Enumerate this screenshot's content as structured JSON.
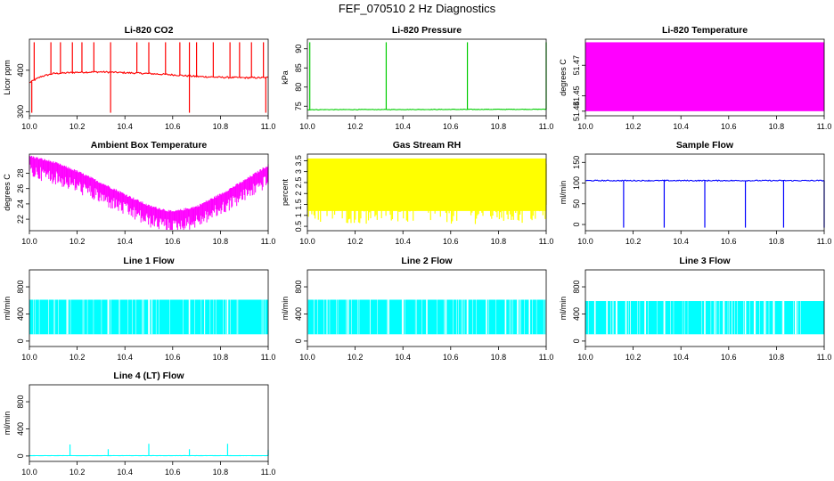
{
  "title": "FEF_070510  2 Hz Diagnostics",
  "colors": {
    "red": "#ff0000",
    "green": "#00cd00",
    "magenta": "#ff00ff",
    "yellow": "#ffff00",
    "blue": "#0000ff",
    "cyan": "#00ffff",
    "axis": "#000000"
  },
  "chart_data": [
    {
      "type": "line",
      "title": "Li-820 CO2",
      "ylabel": "Licor ppm",
      "color": "red",
      "xlim": [
        10.0,
        11.0
      ],
      "ylim": [
        290,
        475
      ],
      "xticks": [
        "10.0",
        "10.2",
        "10.4",
        "10.6",
        "10.8",
        "11.0"
      ],
      "yticks": [
        300,
        400
      ],
      "x": [
        10.0,
        10.05,
        10.1,
        10.2,
        10.3,
        10.4,
        10.5,
        10.6,
        10.7,
        10.8,
        10.9,
        11.0
      ],
      "y": [
        370,
        385,
        392,
        395,
        396,
        394,
        392,
        389,
        385,
        383,
        382,
        382
      ],
      "spikes_up": [
        10.02,
        10.09,
        10.13,
        10.18,
        10.22,
        10.27,
        10.34,
        10.45,
        10.5,
        10.57,
        10.63,
        10.67,
        10.7,
        10.77,
        10.84,
        10.88,
        10.93,
        10.98
      ],
      "spikes_down": [
        10.01,
        10.34,
        10.67,
        10.99
      ]
    },
    {
      "type": "line",
      "title": "Li-820 Pressure",
      "ylabel": "kPa",
      "color": "green",
      "xlim": [
        10.0,
        11.0
      ],
      "ylim": [
        72.5,
        92.5
      ],
      "xticks": [
        "10.0",
        "10.2",
        "10.4",
        "10.6",
        "10.8",
        "11.0"
      ],
      "yticks": [
        75,
        80,
        85,
        90
      ],
      "x": [
        10.0,
        11.0
      ],
      "y": [
        74.1,
        74.2
      ],
      "spikes_up": [
        10.01,
        10.33,
        10.67,
        11.0
      ]
    },
    {
      "type": "line",
      "title": "Li-820 Temperature",
      "ylabel": "degrees C",
      "color": "magenta",
      "xlim": [
        10.0,
        11.0
      ],
      "ylim": [
        51.437,
        51.487
      ],
      "xticks": [
        "10.0",
        "10.2",
        "10.4",
        "10.6",
        "10.8",
        "11.0"
      ],
      "yticks": [
        51.44,
        51.45,
        51.47
      ],
      "x": [
        10.0,
        11.0
      ],
      "y": [
        51.44,
        51.485
      ]
    },
    {
      "type": "line",
      "title": "Ambient Box Temperature",
      "ylabel": "degrees C",
      "color": "magenta",
      "xlim": [
        10.0,
        11.0
      ],
      "ylim": [
        20.5,
        30.5
      ],
      "xticks": [
        "10.0",
        "10.2",
        "10.4",
        "10.6",
        "10.8",
        "11.0"
      ],
      "yticks": [
        22,
        24,
        26,
        28
      ],
      "x": [
        10.0,
        10.1,
        10.2,
        10.3,
        10.4,
        10.5,
        10.6,
        10.7,
        10.8,
        10.9,
        11.0
      ],
      "y": [
        29.8,
        29.0,
        27.8,
        26.3,
        24.8,
        23.3,
        22.5,
        23.2,
        24.8,
        26.6,
        28.6
      ]
    },
    {
      "type": "line",
      "title": "Gas Stream RH",
      "ylabel": "percent",
      "color": "yellow",
      "xlim": [
        10.0,
        11.0
      ],
      "ylim": [
        0.3,
        3.8
      ],
      "xticks": [
        "10.0",
        "10.2",
        "10.4",
        "10.6",
        "10.8",
        "11.0"
      ],
      "yticks": [
        0.5,
        1.0,
        1.5,
        2.0,
        2.5,
        3.0,
        3.5
      ],
      "x": [
        10.0,
        11.0
      ],
      "y": [
        0.6,
        3.6
      ]
    },
    {
      "type": "line",
      "title": "Sample Flow",
      "ylabel": "ml/min",
      "color": "blue",
      "xlim": [
        10.0,
        11.0
      ],
      "ylim": [
        -15,
        170
      ],
      "xticks": [
        "10.0",
        "10.2",
        "10.4",
        "10.6",
        "10.8",
        "11.0"
      ],
      "yticks": [
        0,
        50,
        100,
        150
      ],
      "x": [
        10.0,
        11.0
      ],
      "y": [
        106,
        106
      ],
      "spikes_down": [
        10.16,
        10.33,
        10.5,
        10.67,
        10.83,
        11.0
      ]
    },
    {
      "type": "line",
      "title": "Line 1 Flow",
      "ylabel": "ml/min",
      "color": "cyan",
      "xlim": [
        10.0,
        11.0
      ],
      "ylim": [
        -80,
        1050
      ],
      "xticks": [
        "10.0",
        "10.2",
        "10.4",
        "10.6",
        "10.8",
        "11.0"
      ],
      "yticks": [
        0,
        400,
        800
      ],
      "x": [
        10.0,
        11.0
      ],
      "y": [
        100,
        610
      ],
      "gaps": [
        10.16,
        10.33,
        10.5,
        10.67,
        10.83
      ]
    },
    {
      "type": "line",
      "title": "Line 2 Flow",
      "ylabel": "ml/min",
      "color": "cyan",
      "xlim": [
        10.0,
        11.0
      ],
      "ylim": [
        -80,
        1050
      ],
      "xticks": [
        "10.0",
        "10.2",
        "10.4",
        "10.6",
        "10.8",
        "11.0"
      ],
      "yticks": [
        0,
        400,
        800
      ],
      "x": [
        10.0,
        11.0
      ],
      "y": [
        100,
        610
      ],
      "gaps": [
        10.17,
        10.34,
        10.4,
        10.5,
        10.58,
        10.67,
        10.75,
        10.83,
        10.88,
        10.93
      ]
    },
    {
      "type": "line",
      "title": "Line 3 Flow",
      "ylabel": "ml/min",
      "color": "cyan",
      "xlim": [
        10.0,
        11.0
      ],
      "ylim": [
        -80,
        1050
      ],
      "xticks": [
        "10.0",
        "10.2",
        "10.4",
        "10.6",
        "10.8",
        "11.0"
      ],
      "yticks": [
        0,
        400,
        800
      ],
      "x": [
        10.0,
        11.0
      ],
      "y": [
        100,
        590
      ],
      "gaps": [
        10.04,
        10.09,
        10.13,
        10.17,
        10.25,
        10.33,
        10.5,
        10.58,
        10.67,
        10.71,
        10.75,
        10.79,
        10.83,
        10.88
      ]
    },
    {
      "type": "line",
      "title": "Line 4 (LT) Flow",
      "ylabel": "ml/min",
      "color": "cyan",
      "xlim": [
        10.0,
        11.0
      ],
      "ylim": [
        -80,
        1050
      ],
      "xticks": [
        "10.0",
        "10.2",
        "10.4",
        "10.6",
        "10.8",
        "11.0"
      ],
      "yticks": [
        0,
        400,
        800
      ],
      "x": [
        10.0,
        11.0
      ],
      "y": [
        5,
        5
      ],
      "spikes_up": [
        10.17,
        10.33,
        10.5,
        10.67,
        10.83,
        11.0
      ],
      "spike_heights": [
        170,
        100,
        180,
        100,
        180,
        90
      ]
    }
  ]
}
